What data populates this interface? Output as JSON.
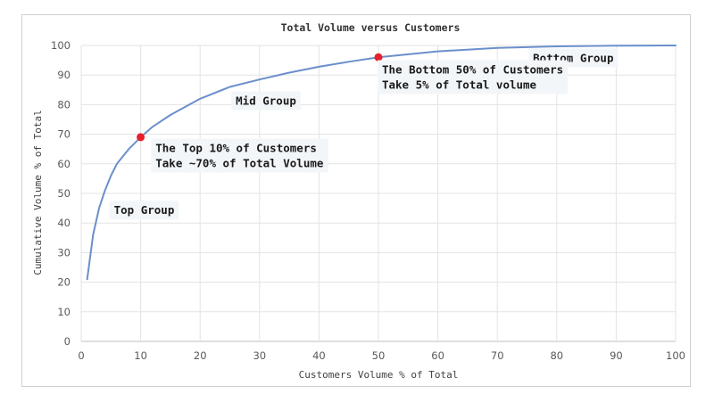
{
  "chart_data": {
    "type": "line",
    "title": "Total Volume versus Customers",
    "xlabel": "Customers Volume % of Total",
    "ylabel": "Cumulative Volume % of Total",
    "xlim": [
      0,
      100
    ],
    "ylim": [
      0,
      100
    ],
    "x_ticks": [
      "0",
      "10",
      "20",
      "30",
      "40",
      "50",
      "60",
      "70",
      "80",
      "90",
      "100"
    ],
    "y_ticks": [
      "0",
      "10",
      "20",
      "30",
      "40",
      "50",
      "60",
      "70",
      "80",
      "90",
      "100"
    ],
    "grid": true,
    "series": [
      {
        "color": "#6b8fcb",
        "x": [
          1,
          2,
          3,
          4,
          5,
          6,
          8,
          10,
          12,
          15,
          20,
          25,
          30,
          35,
          40,
          45,
          50,
          60,
          70,
          80,
          90,
          100
        ],
        "y": [
          21,
          36,
          45,
          51,
          56,
          60,
          65,
          69,
          72.5,
          76.5,
          82,
          86,
          88.5,
          90.8,
          92.8,
          94.5,
          96,
          98,
          99.2,
          99.7,
          99.9,
          100
        ]
      }
    ],
    "highlight_points": [
      {
        "x": 10,
        "y": 69,
        "color": "#e8202a"
      },
      {
        "x": 50,
        "y": 96,
        "color": "#e8202a"
      }
    ],
    "annotations": [
      {
        "lines": [
          "Top Group"
        ],
        "x": 5.5,
        "y": 43
      },
      {
        "lines": [
          "Mid Group"
        ],
        "x": 26,
        "y": 80
      },
      {
        "lines": [
          "Bottom Group"
        ],
        "x": 76,
        "y": 94.5
      },
      {
        "lines": [
          "The Top 10% of Customers",
          "Take ~70% of Total Volume"
        ],
        "x": 12.5,
        "y": 64
      },
      {
        "lines": [
          "The Bottom 50% of Customers",
          "Take 5% of Total volume"
        ],
        "x": 50.6,
        "y": 90.5
      }
    ]
  }
}
